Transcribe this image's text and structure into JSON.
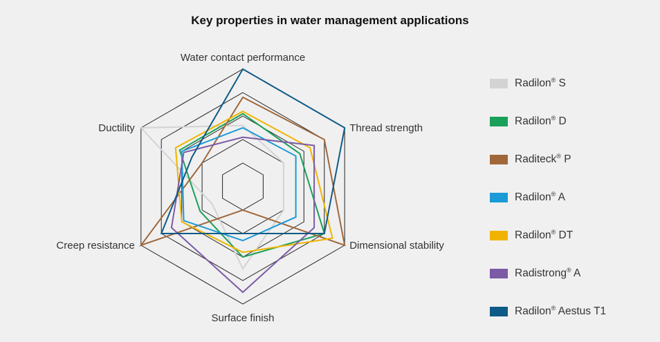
{
  "chart_data": {
    "type": "radar",
    "title": "Key properties in water management applications",
    "axes": [
      "Water contact performance",
      "Thread strength",
      "Dimensional stability",
      "Surface finish",
      "Creep resistance",
      "Ductility"
    ],
    "scale": {
      "min": 0,
      "max": 5,
      "rings": [
        1,
        2,
        3,
        4,
        5
      ]
    },
    "series": [
      {
        "name": "Radilon",
        "mark": "®",
        "suffix": " S",
        "color": "#d3d3d3",
        "values": [
          2.6,
          2.0,
          2.0,
          3.5,
          1.5,
          5.0
        ]
      },
      {
        "name": "Radilon",
        "mark": "®",
        "suffix": " D",
        "color": "#1aa05a",
        "values": [
          3.1,
          2.8,
          4.0,
          3.0,
          2.1,
          3.1
        ]
      },
      {
        "name": "Raditeck",
        "mark": "®",
        "suffix": " P",
        "color": "#a0673a",
        "values": [
          3.8,
          4.0,
          5.0,
          1.0,
          5.0,
          2.0
        ]
      },
      {
        "name": "Radilon",
        "mark": "®",
        "suffix": " A",
        "color": "#1a9ad6",
        "values": [
          2.5,
          2.6,
          2.6,
          2.3,
          2.9,
          3.0
        ]
      },
      {
        "name": "Radilon",
        "mark": "®",
        "suffix": " DT",
        "color": "#f0b400",
        "values": [
          3.2,
          3.3,
          4.4,
          2.8,
          3.0,
          3.3
        ]
      },
      {
        "name": "Radistrong",
        "mark": "®",
        "suffix": " A",
        "color": "#7b5aa6",
        "values": [
          2.1,
          3.5,
          3.5,
          4.5,
          3.5,
          2.9
        ]
      },
      {
        "name": "Radilon",
        "mark": "®",
        "suffix": " Aestus T1",
        "color": "#0e5a86",
        "values": [
          5.0,
          5.0,
          4.0,
          2.0,
          4.0,
          2.5
        ]
      }
    ]
  }
}
